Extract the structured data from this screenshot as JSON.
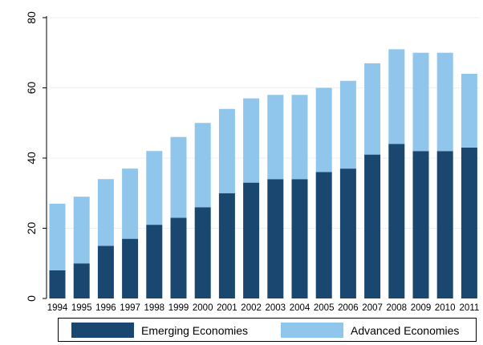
{
  "chart_data": {
    "type": "bar",
    "stacked": true,
    "title": "",
    "xlabel": "",
    "ylabel": "",
    "ylim": [
      0,
      80
    ],
    "yticks": [
      0,
      20,
      40,
      60,
      80
    ],
    "grid": true,
    "legend_position": "bottom",
    "categories": [
      "1994",
      "1995",
      "1996",
      "1997",
      "1998",
      "1999",
      "2000",
      "2001",
      "2002",
      "2003",
      "2004",
      "2005",
      "2006",
      "2007",
      "2008",
      "2009",
      "2010",
      "2011"
    ],
    "series": [
      {
        "name": "Emerging Economies",
        "color": "#1a476f",
        "values": [
          8,
          10,
          15,
          17,
          21,
          23,
          26,
          30,
          33,
          34,
          34,
          36,
          37,
          41,
          44,
          42,
          42,
          43
        ]
      },
      {
        "name": "Advanced Economies",
        "color": "#90c6ec",
        "values": [
          19,
          19,
          19,
          20,
          21,
          23,
          24,
          24,
          24,
          24,
          24,
          24,
          25,
          26,
          27,
          28,
          28,
          21
        ]
      }
    ]
  }
}
